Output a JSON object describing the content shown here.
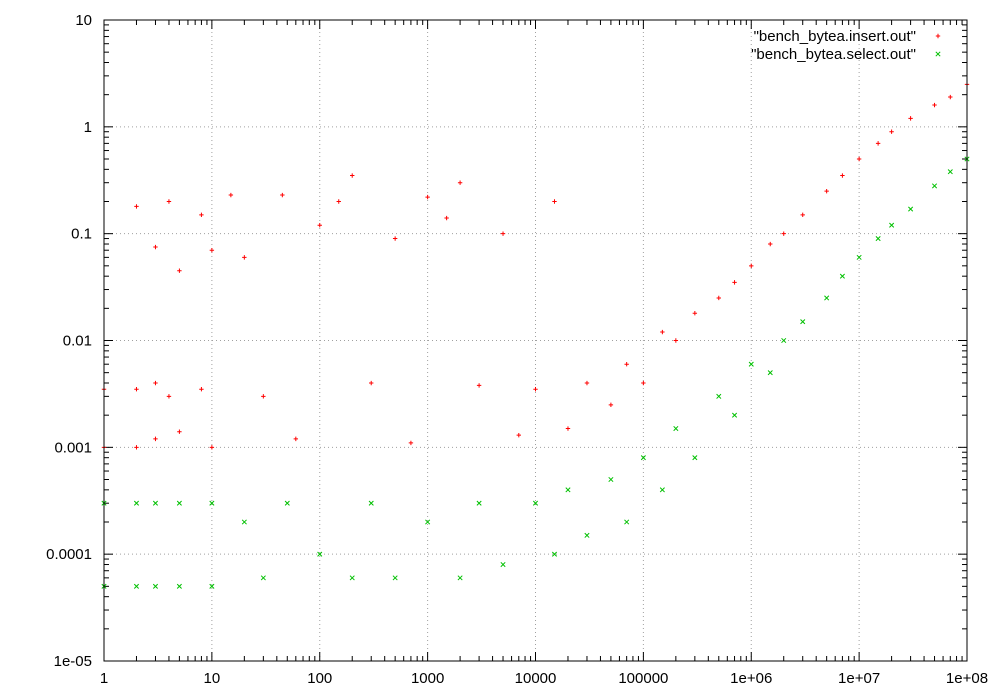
{
  "chart_data": {
    "type": "scatter",
    "title": "",
    "xlabel": "",
    "ylabel": "",
    "x_scale": "log",
    "y_scale": "log",
    "xlim": [
      1,
      100000000
    ],
    "ylim": [
      1e-05,
      10
    ],
    "grid": true,
    "legend_position": "top-right",
    "x_ticks": [
      "1",
      "10",
      "100",
      "1000",
      "10000",
      "100000",
      "1e+06",
      "1e+07",
      "1e+08"
    ],
    "y_ticks": [
      "1e-05",
      "0.0001",
      "0.001",
      "0.01",
      "0.1",
      "1",
      "10"
    ],
    "series": [
      {
        "name": "\"bench_bytea.insert.out\"",
        "color": "#ff0000",
        "marker": "plus",
        "points": [
          [
            1,
            0.0035
          ],
          [
            1,
            0.001
          ],
          [
            2,
            0.18
          ],
          [
            2,
            0.0035
          ],
          [
            2,
            0.001
          ],
          [
            3,
            0.075
          ],
          [
            3,
            0.004
          ],
          [
            3,
            0.0012
          ],
          [
            4,
            0.2
          ],
          [
            4,
            0.003
          ],
          [
            5,
            0.045
          ],
          [
            5,
            0.0014
          ],
          [
            8,
            0.15
          ],
          [
            8,
            0.0035
          ],
          [
            10,
            0.07
          ],
          [
            10,
            0.001
          ],
          [
            15,
            0.23
          ],
          [
            20,
            0.06
          ],
          [
            30,
            0.003
          ],
          [
            45,
            0.23
          ],
          [
            60,
            0.0012
          ],
          [
            100,
            0.12
          ],
          [
            150,
            0.2
          ],
          [
            200,
            0.35
          ],
          [
            300,
            0.004
          ],
          [
            500,
            0.09
          ],
          [
            700,
            0.0011
          ],
          [
            1000,
            0.22
          ],
          [
            1500,
            0.14
          ],
          [
            2000,
            0.3
          ],
          [
            3000,
            0.0038
          ],
          [
            5000,
            0.1
          ],
          [
            7000,
            0.0013
          ],
          [
            10000,
            0.0035
          ],
          [
            15000,
            0.2
          ],
          [
            20000,
            0.0015
          ],
          [
            30000,
            0.004
          ],
          [
            50000,
            0.0025
          ],
          [
            70000,
            0.006
          ],
          [
            100000,
            0.004
          ],
          [
            150000,
            0.012
          ],
          [
            200000,
            0.01
          ],
          [
            300000,
            0.018
          ],
          [
            500000,
            0.025
          ],
          [
            700000,
            0.035
          ],
          [
            1000000,
            0.05
          ],
          [
            1500000,
            0.08
          ],
          [
            2000000,
            0.1
          ],
          [
            3000000,
            0.15
          ],
          [
            5000000,
            0.25
          ],
          [
            7000000,
            0.35
          ],
          [
            10000000,
            0.5
          ],
          [
            15000000,
            0.7
          ],
          [
            20000000,
            0.9
          ],
          [
            30000000,
            1.2
          ],
          [
            50000000,
            1.6
          ],
          [
            70000000,
            1.9
          ],
          [
            100000000,
            2.5
          ]
        ]
      },
      {
        "name": "\"bench_bytea.select.out\"",
        "color": "#00c000",
        "marker": "cross",
        "points": [
          [
            1,
            0.0003
          ],
          [
            1,
            5e-05
          ],
          [
            2,
            0.0003
          ],
          [
            2,
            5e-05
          ],
          [
            3,
            0.0003
          ],
          [
            3,
            5e-05
          ],
          [
            5,
            0.0003
          ],
          [
            5,
            5e-05
          ],
          [
            10,
            0.0003
          ],
          [
            10,
            5e-05
          ],
          [
            20,
            0.0002
          ],
          [
            30,
            6e-05
          ],
          [
            50,
            0.0003
          ],
          [
            100,
            0.0001
          ],
          [
            200,
            6e-05
          ],
          [
            300,
            0.0003
          ],
          [
            500,
            6e-05
          ],
          [
            1000,
            0.0002
          ],
          [
            2000,
            6e-05
          ],
          [
            3000,
            0.0003
          ],
          [
            5000,
            8e-05
          ],
          [
            10000,
            0.0003
          ],
          [
            15000,
            0.0001
          ],
          [
            20000,
            0.0004
          ],
          [
            30000,
            0.00015
          ],
          [
            50000,
            0.0005
          ],
          [
            70000,
            0.0002
          ],
          [
            100000,
            0.0008
          ],
          [
            150000,
            0.0004
          ],
          [
            200000,
            0.0015
          ],
          [
            300000,
            0.0008
          ],
          [
            500000,
            0.003
          ],
          [
            700000,
            0.002
          ],
          [
            1000000,
            0.006
          ],
          [
            1500000,
            0.005
          ],
          [
            2000000,
            0.01
          ],
          [
            3000000,
            0.015
          ],
          [
            5000000,
            0.025
          ],
          [
            7000000,
            0.04
          ],
          [
            10000000,
            0.06
          ],
          [
            15000000,
            0.09
          ],
          [
            20000000,
            0.12
          ],
          [
            30000000,
            0.17
          ],
          [
            50000000,
            0.28
          ],
          [
            70000000,
            0.38
          ],
          [
            100000000,
            0.5
          ]
        ]
      }
    ]
  }
}
